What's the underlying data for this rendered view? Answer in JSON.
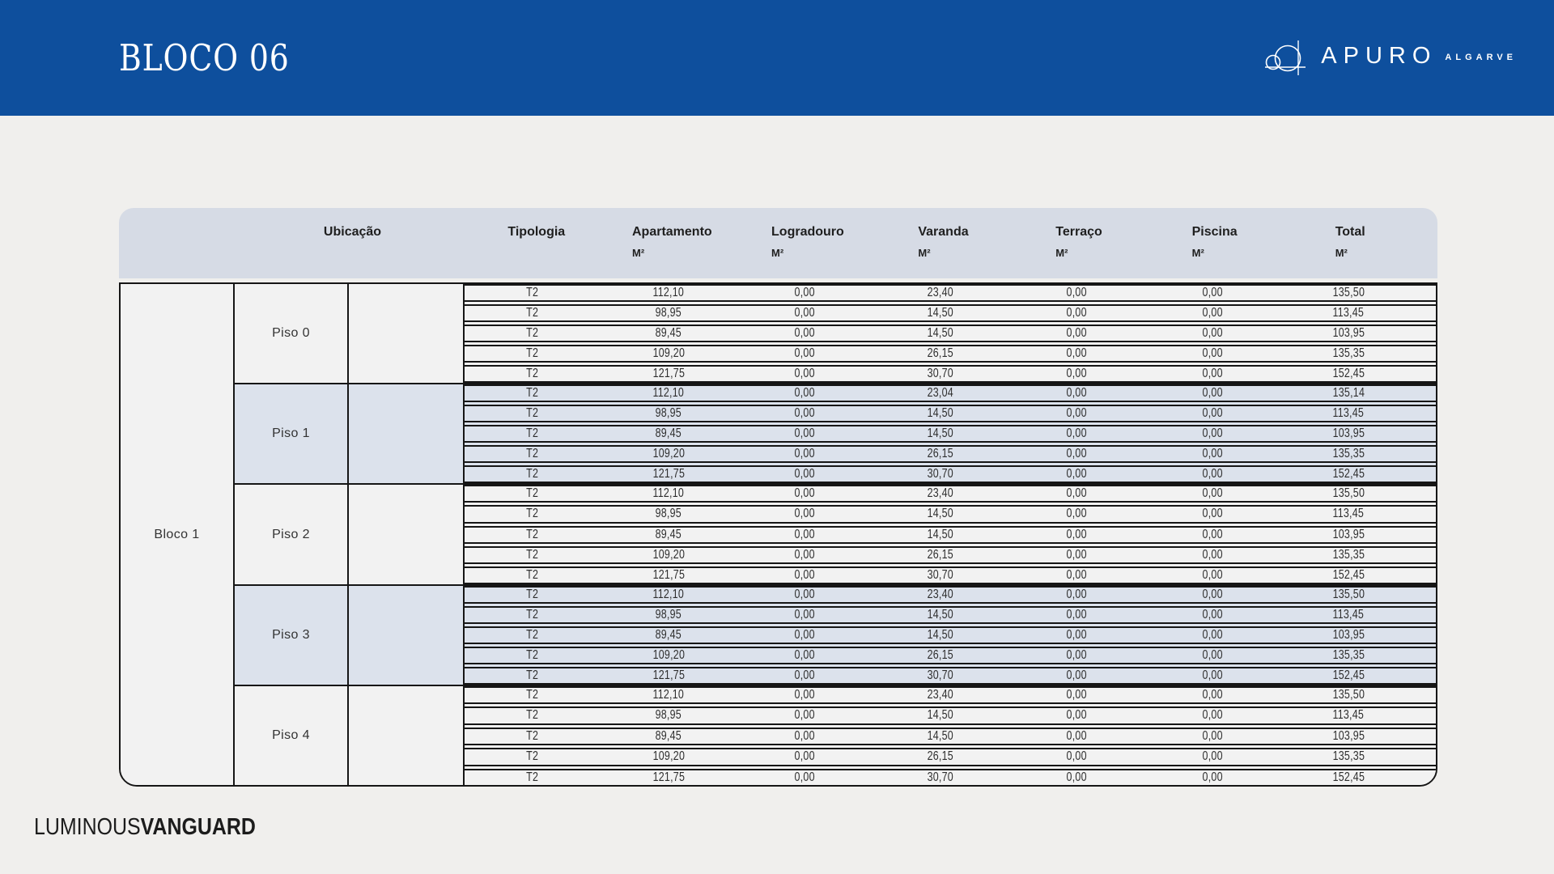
{
  "banner": {
    "title": "BLOCO 06",
    "brand": "APURO",
    "brand_sub": "ALGARVE"
  },
  "footer": {
    "thin": "LUMINOUS",
    "bold": "VANGUARD"
  },
  "colors": {
    "banner_blue": "#0e4f9d",
    "header_band": "#d6dbe5",
    "tinted_row": "#dce2ec",
    "light_row": "#f2f2f2",
    "page_background": "#f0efed",
    "table_border": "#161616"
  },
  "table": {
    "location_header": "Ubicação",
    "block_label": "Bloco 1",
    "columns": [
      {
        "label": "Tipologia",
        "unit": ""
      },
      {
        "label": "Apartamento",
        "unit": "M²"
      },
      {
        "label": "Logradouro",
        "unit": "M²"
      },
      {
        "label": "Varanda",
        "unit": "M²"
      },
      {
        "label": "Terraço",
        "unit": "M²"
      },
      {
        "label": "Piscina",
        "unit": "M²"
      },
      {
        "label": "Total",
        "unit": "M²"
      }
    ],
    "groups": [
      {
        "floor": "Piso 0",
        "tinted": false,
        "rows": [
          [
            "T2",
            "112,10",
            "0,00",
            "23,40",
            "0,00",
            "0,00",
            "135,50"
          ],
          [
            "T2",
            "98,95",
            "0,00",
            "14,50",
            "0,00",
            "0,00",
            "113,45"
          ],
          [
            "T2",
            "89,45",
            "0,00",
            "14,50",
            "0,00",
            "0,00",
            "103,95"
          ],
          [
            "T2",
            "109,20",
            "0,00",
            "26,15",
            "0,00",
            "0,00",
            "135,35"
          ],
          [
            "T2",
            "121,75",
            "0,00",
            "30,70",
            "0,00",
            "0,00",
            "152,45"
          ]
        ]
      },
      {
        "floor": "Piso 1",
        "tinted": true,
        "rows": [
          [
            "T2",
            "112,10",
            "0,00",
            "23,04",
            "0,00",
            "0,00",
            "135,14"
          ],
          [
            "T2",
            "98,95",
            "0,00",
            "14,50",
            "0,00",
            "0,00",
            "113,45"
          ],
          [
            "T2",
            "89,45",
            "0,00",
            "14,50",
            "0,00",
            "0,00",
            "103,95"
          ],
          [
            "T2",
            "109,20",
            "0,00",
            "26,15",
            "0,00",
            "0,00",
            "135,35"
          ],
          [
            "T2",
            "121,75",
            "0,00",
            "30,70",
            "0,00",
            "0,00",
            "152,45"
          ]
        ]
      },
      {
        "floor": "Piso 2",
        "tinted": false,
        "rows": [
          [
            "T2",
            "112,10",
            "0,00",
            "23,40",
            "0,00",
            "0,00",
            "135,50"
          ],
          [
            "T2",
            "98,95",
            "0,00",
            "14,50",
            "0,00",
            "0,00",
            "113,45"
          ],
          [
            "T2",
            "89,45",
            "0,00",
            "14,50",
            "0,00",
            "0,00",
            "103,95"
          ],
          [
            "T2",
            "109,20",
            "0,00",
            "26,15",
            "0,00",
            "0,00",
            "135,35"
          ],
          [
            "T2",
            "121,75",
            "0,00",
            "30,70",
            "0,00",
            "0,00",
            "152,45"
          ]
        ]
      },
      {
        "floor": "Piso 3",
        "tinted": true,
        "rows": [
          [
            "T2",
            "112,10",
            "0,00",
            "23,40",
            "0,00",
            "0,00",
            "135,50"
          ],
          [
            "T2",
            "98,95",
            "0,00",
            "14,50",
            "0,00",
            "0,00",
            "113,45"
          ],
          [
            "T2",
            "89,45",
            "0,00",
            "14,50",
            "0,00",
            "0,00",
            "103,95"
          ],
          [
            "T2",
            "109,20",
            "0,00",
            "26,15",
            "0,00",
            "0,00",
            "135,35"
          ],
          [
            "T2",
            "121,75",
            "0,00",
            "30,70",
            "0,00",
            "0,00",
            "152,45"
          ]
        ]
      },
      {
        "floor": "Piso 4",
        "tinted": false,
        "rows": [
          [
            "T2",
            "112,10",
            "0,00",
            "23,40",
            "0,00",
            "0,00",
            "135,50"
          ],
          [
            "T2",
            "98,95",
            "0,00",
            "14,50",
            "0,00",
            "0,00",
            "113,45"
          ],
          [
            "T2",
            "89,45",
            "0,00",
            "14,50",
            "0,00",
            "0,00",
            "103,95"
          ],
          [
            "T2",
            "109,20",
            "0,00",
            "26,15",
            "0,00",
            "0,00",
            "135,35"
          ],
          [
            "T2",
            "121,75",
            "0,00",
            "30,70",
            "0,00",
            "0,00",
            "152,45"
          ]
        ]
      }
    ]
  }
}
